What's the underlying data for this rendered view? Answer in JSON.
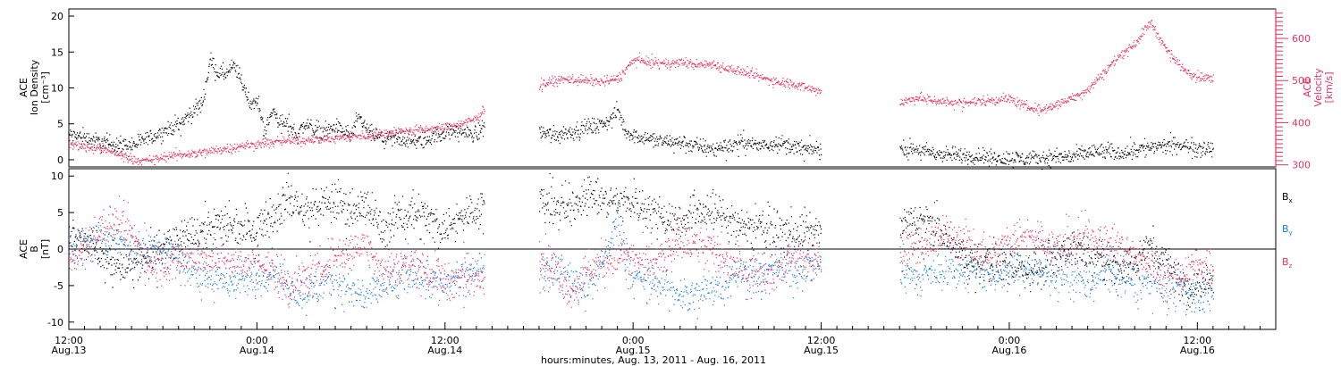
{
  "figure": {
    "xlabel": "hours:minutes, Aug. 13, 2011 - Aug. 16, 2011",
    "x_ticks": [
      {
        "hour": 0,
        "time": "12:00",
        "date": "Aug.13"
      },
      {
        "hour": 12,
        "time": "0:00",
        "date": "Aug.14"
      },
      {
        "hour": 24,
        "time": "12:00",
        "date": "Aug.14"
      },
      {
        "hour": 36,
        "time": "0:00",
        "date": "Aug.15"
      },
      {
        "hour": 48,
        "time": "12:00",
        "date": "Aug.15"
      },
      {
        "hour": 60,
        "time": "0:00",
        "date": "Aug.16"
      },
      {
        "hour": 72,
        "time": "12:00",
        "date": "Aug.16"
      }
    ],
    "x_range_hours": [
      0,
      77
    ]
  },
  "colors": {
    "density": "#000000",
    "velocity": "#e8335f",
    "bx": "#000000",
    "by": "#1a7fdb",
    "bz": "#e8335f"
  },
  "chart_data": [
    {
      "type": "scatter",
      "panel": "top",
      "left_axis_title": [
        "ACE",
        "Ion Density",
        "[cm⁻³]"
      ],
      "right_axis_title": [
        "ACE",
        "Velocity",
        "[km/s]"
      ],
      "ylim_left": [
        -1,
        21
      ],
      "yticks_left": [
        0,
        5,
        10,
        15,
        20
      ],
      "ylim_right": [
        295,
        670
      ],
      "yticks_right": [
        300,
        400,
        500,
        600
      ],
      "gaps_hours": [
        [
          26.8,
          28.9
        ],
        [
          48.6,
          52.3
        ]
      ],
      "series": [
        {
          "axis": "left",
          "x": [
            0,
            1,
            2,
            3,
            4,
            5,
            6,
            7,
            8,
            8.5,
            9,
            9.5,
            10,
            10.5,
            11,
            11.5,
            12,
            12.5,
            13,
            13.5,
            14,
            14.5,
            15,
            16,
            17,
            18,
            18.5,
            19,
            20,
            21,
            22,
            23,
            24,
            25,
            26,
            26.5,
            30,
            31,
            32,
            33,
            34,
            34.5,
            35,
            35.5,
            36,
            37,
            38,
            39,
            40,
            41,
            42,
            43,
            44,
            45,
            46,
            47,
            48,
            53,
            54,
            55,
            56,
            57,
            58,
            59,
            60,
            61,
            62,
            63,
            64,
            65,
            66,
            67,
            68,
            69,
            70,
            71,
            72,
            73
          ],
          "values": [
            3.5,
            3.2,
            2.5,
            2.2,
            2.0,
            3.0,
            4.0,
            5.0,
            7.0,
            8.0,
            14.0,
            12.0,
            12.0,
            13.0,
            11.0,
            8.0,
            8.0,
            4.0,
            7.0,
            5.0,
            5.0,
            3.5,
            5.0,
            4.0,
            4.5,
            3.5,
            6.0,
            4.0,
            3.0,
            3.0,
            2.5,
            3.0,
            4.0,
            4.0,
            3.5,
            5.0,
            4.0,
            3.5,
            4.0,
            4.5,
            5.0,
            5.5,
            7.0,
            4.0,
            3.5,
            3.0,
            2.5,
            2.5,
            2.0,
            1.5,
            2.0,
            2.5,
            2.0,
            2.5,
            2.0,
            1.5,
            1.5,
            1.5,
            1.5,
            1.0,
            0.8,
            0.6,
            0.5,
            0.3,
            0.3,
            0.2,
            0.2,
            0.5,
            0.5,
            1.0,
            1.2,
            1.0,
            1.5,
            1.8,
            2.0,
            2.0,
            1.8,
            1.5
          ]
        },
        {
          "axis": "right",
          "x": [
            0,
            1,
            2,
            3,
            4,
            5,
            6,
            7,
            8,
            9,
            10,
            11,
            12,
            13,
            14,
            15,
            16,
            17,
            18,
            19,
            20,
            21,
            22,
            23,
            24,
            25,
            26,
            26.5,
            30,
            31,
            32,
            33,
            34,
            35,
            36,
            37,
            38,
            39,
            40,
            41,
            42,
            43,
            44,
            45,
            46,
            47,
            48,
            53,
            54,
            55,
            56,
            57,
            58,
            59,
            60,
            61,
            62,
            63,
            64,
            65,
            66,
            67,
            68,
            69,
            70,
            71,
            72,
            73
          ],
          "values": [
            350,
            345,
            340,
            328,
            315,
            310,
            318,
            325,
            328,
            333,
            340,
            345,
            350,
            355,
            358,
            360,
            362,
            365,
            368,
            370,
            375,
            380,
            382,
            385,
            390,
            398,
            410,
            435,
            490,
            500,
            505,
            500,
            498,
            505,
            550,
            545,
            540,
            545,
            538,
            540,
            530,
            520,
            510,
            500,
            495,
            485,
            475,
            448,
            460,
            455,
            450,
            448,
            452,
            455,
            458,
            440,
            430,
            445,
            460,
            480,
            520,
            560,
            590,
            640,
            575,
            530,
            510,
            505
          ]
        }
      ]
    },
    {
      "type": "scatter",
      "panel": "bottom",
      "left_axis_title": [
        "ACE",
        "B",
        "[nT]"
      ],
      "ylim": [
        -11,
        11
      ],
      "yticks": [
        -10,
        -5,
        0,
        5,
        10
      ],
      "zero_line": true,
      "gaps_hours": [
        [
          26.8,
          28.9
        ],
        [
          48.6,
          52.3
        ]
      ],
      "legend": [
        "Bx",
        "By",
        "Bz"
      ],
      "series": [
        {
          "name": "Bx",
          "x": [
            0,
            1,
            2,
            3,
            4,
            5,
            6,
            7,
            8,
            9,
            10,
            11,
            12,
            13,
            14,
            15,
            16,
            17,
            18,
            19,
            20,
            21,
            22,
            23,
            24,
            25,
            26,
            26.5,
            30,
            31,
            32,
            33,
            34,
            35,
            36,
            37,
            38,
            39,
            40,
            41,
            42,
            43,
            44,
            45,
            46,
            47,
            48,
            53,
            54,
            55,
            56,
            57,
            58,
            59,
            60,
            61,
            62,
            63,
            64,
            65,
            66,
            67,
            68,
            69,
            70,
            71,
            72,
            73
          ],
          "values": [
            2.5,
            1.5,
            -1.0,
            -2.0,
            -2.5,
            -1.5,
            0.5,
            1.0,
            2.0,
            3.0,
            3.5,
            3.0,
            3.0,
            5.0,
            7.0,
            5.0,
            6.0,
            6.5,
            5.5,
            6.0,
            2.5,
            4.5,
            5.5,
            4.0,
            3.0,
            4.5,
            5.5,
            6.0,
            6.5,
            6.0,
            5.5,
            8.0,
            6.5,
            6.5,
            6.5,
            5.5,
            4.5,
            4.0,
            5.5,
            5.0,
            4.5,
            3.0,
            3.5,
            2.5,
            2.0,
            2.5,
            2.0,
            3.0,
            4.0,
            3.5,
            1.0,
            -1.0,
            -2.5,
            -1.5,
            -2.0,
            -3.0,
            -2.0,
            -1.0,
            0.5,
            -0.5,
            -1.5,
            -2.5,
            -2.0,
            0.5,
            -2.0,
            -4.5,
            -5.5,
            -4.5
          ]
        },
        {
          "name": "By",
          "x": [
            0,
            1,
            2,
            3,
            4,
            5,
            6,
            7,
            8,
            9,
            10,
            11,
            12,
            13,
            14,
            15,
            16,
            17,
            18,
            19,
            20,
            21,
            22,
            23,
            24,
            25,
            26,
            26.5,
            30,
            31,
            32,
            33,
            34,
            35,
            36,
            37,
            38,
            39,
            40,
            41,
            42,
            43,
            44,
            45,
            46,
            47,
            48,
            53,
            54,
            55,
            56,
            57,
            58,
            59,
            60,
            61,
            62,
            63,
            64,
            65,
            66,
            67,
            68,
            69,
            70,
            71,
            72,
            73
          ],
          "values": [
            0.5,
            0.5,
            1.5,
            1.0,
            0.5,
            0.5,
            0,
            -1.0,
            -3.0,
            -4.0,
            -4.5,
            -4.0,
            -4.0,
            -2.5,
            -5.0,
            -6.0,
            -5.0,
            -4.5,
            -5.5,
            -6.5,
            -5.0,
            -4.5,
            -3.0,
            -4.0,
            -5.0,
            -3.5,
            -3.0,
            -2.0,
            -2.0,
            -3.0,
            -4.0,
            -5.0,
            -2.0,
            4.0,
            -4.0,
            -4.5,
            -5.0,
            -6.0,
            -6.5,
            -5.0,
            -4.0,
            -3.0,
            -4.0,
            -2.5,
            -3.0,
            -2.5,
            -1.5,
            -2.5,
            -4.0,
            -3.0,
            -2.5,
            -3.0,
            -2.5,
            -4.0,
            -3.0,
            -2.5,
            -3.5,
            -3.0,
            -4.0,
            -4.5,
            -3.0,
            -4.0,
            -4.5,
            -4.5,
            -5.5,
            -5.0,
            -6.5,
            -5.5
          ]
        },
        {
          "name": "Bz",
          "x": [
            0,
            1,
            2,
            3,
            4,
            5,
            6,
            7,
            8,
            9,
            10,
            11,
            12,
            13,
            14,
            15,
            16,
            17,
            18,
            19,
            20,
            21,
            22,
            23,
            24,
            25,
            26,
            26.5,
            30,
            31,
            32,
            33,
            34,
            35,
            36,
            37,
            38,
            39,
            40,
            41,
            42,
            43,
            44,
            45,
            46,
            47,
            48,
            53,
            54,
            55,
            56,
            57,
            58,
            59,
            60,
            61,
            62,
            63,
            64,
            65,
            66,
            67,
            68,
            69,
            70,
            71,
            72,
            73
          ],
          "values": [
            -2.0,
            0.5,
            3.0,
            3.5,
            2.0,
            -1.5,
            -2.0,
            -1.5,
            -1.0,
            -1.5,
            -1.0,
            -2.0,
            -2.0,
            -3.0,
            -5.0,
            -4.0,
            -3.0,
            -1.0,
            0,
            1.0,
            -3.0,
            -2.5,
            -1.5,
            -3.0,
            -4.0,
            -4.0,
            -4.0,
            -3.5,
            -1.0,
            -2.5,
            -6.0,
            -3.0,
            -2.0,
            -1.0,
            -1.5,
            -2.0,
            -1.0,
            0.5,
            1.0,
            0,
            -1.5,
            -2.5,
            -3.0,
            -3.0,
            -1.0,
            -1.5,
            -2.0,
            -0.5,
            0.5,
            1.0,
            2.0,
            1.0,
            0,
            -1.0,
            1.5,
            2.0,
            1.5,
            0,
            1.0,
            2.0,
            1.0,
            0.5,
            -1.0,
            -2.0,
            -4.0,
            -3.5,
            -1.5,
            -3.0
          ]
        }
      ]
    }
  ]
}
